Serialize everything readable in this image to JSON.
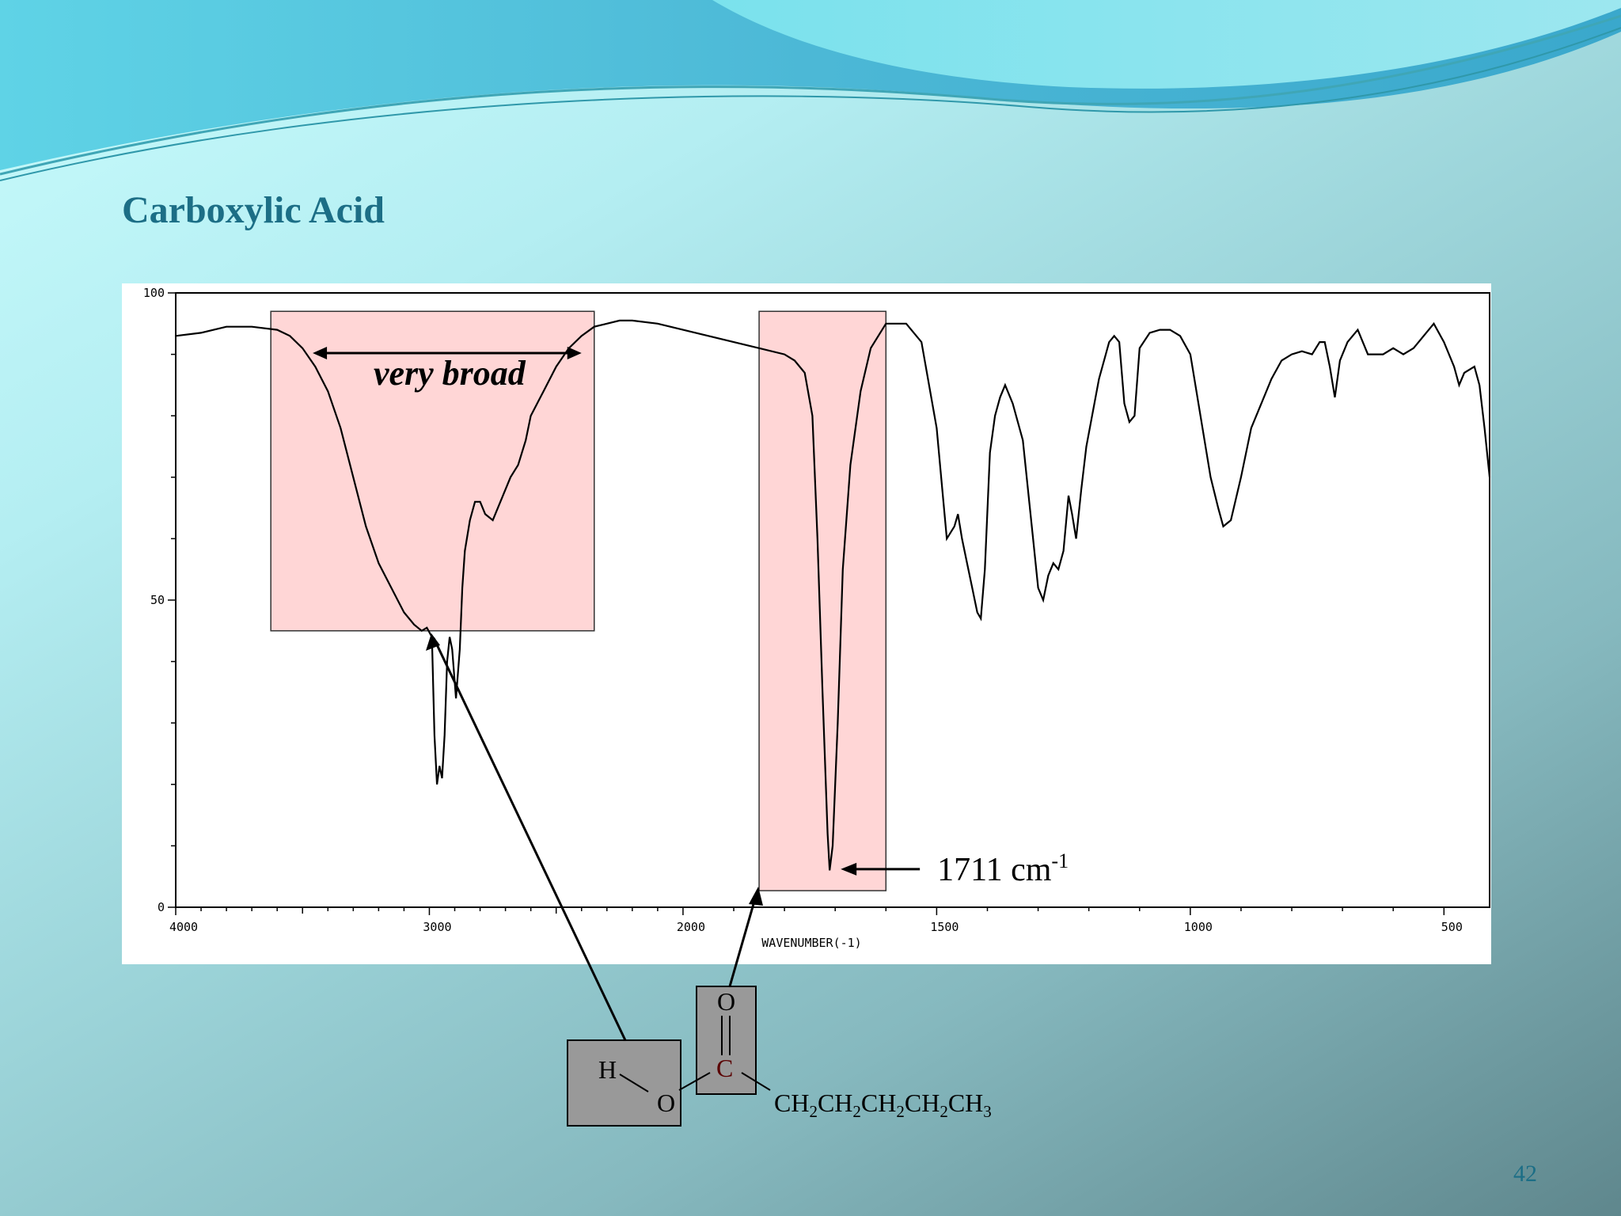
{
  "slide": {
    "title": "Carboxylic Acid",
    "page_number": "42"
  },
  "annotations": {
    "broad_label": "very broad",
    "peak_label": "1711 cm",
    "peak_label_sup": "-1"
  },
  "structure": {
    "h_atom": "H",
    "o_atom": "O",
    "carbonyl_o": "O",
    "carbonyl_c": "C",
    "chain": [
      "CH",
      "2",
      "CH",
      "2",
      "CH",
      "2",
      "CH",
      "2",
      "CH",
      "3"
    ]
  },
  "colors": {
    "title": "#1c6e86",
    "highlight": "#ffd6d6",
    "structure_box": "#999999",
    "wave_top": "#3bb6d0"
  },
  "chart_data": {
    "type": "line",
    "title": "",
    "xlabel": "WAVENUMBER(-1)",
    "ylabel": "",
    "xlim": [
      4000,
      410
    ],
    "ylim": [
      0,
      100
    ],
    "x_ticks": [
      4000,
      3000,
      2000,
      1500,
      1000,
      500
    ],
    "x_tick_labels": [
      "4000",
      "3000",
      "2000",
      "1500",
      "1000",
      "500"
    ],
    "y_ticks": [
      0,
      50,
      100
    ],
    "y_tick_labels": [
      "0",
      "50",
      "100"
    ],
    "grid": false,
    "series": [
      {
        "x": [
          4000,
          3900,
          3800,
          3700,
          3600,
          3550,
          3500,
          3450,
          3400,
          3350,
          3300,
          3250,
          3200,
          3150,
          3100,
          3060,
          3030,
          3010,
          2990,
          2980,
          2970,
          2960,
          2950,
          2940,
          2930,
          2920,
          2910,
          2895,
          2880,
          2870,
          2860,
          2840,
          2820,
          2800,
          2780,
          2750,
          2720,
          2700,
          2680,
          2650,
          2620,
          2600,
          2550,
          2500,
          2450,
          2400,
          2350,
          2300,
          2250,
          2200,
          2100,
          2000,
          1900,
          1850,
          1800,
          1780,
          1760,
          1745,
          1735,
          1725,
          1715,
          1711,
          1705,
          1695,
          1685,
          1670,
          1650,
          1630,
          1600,
          1560,
          1530,
          1500,
          1480,
          1465,
          1458,
          1450,
          1440,
          1430,
          1420,
          1413,
          1405,
          1395,
          1385,
          1375,
          1365,
          1350,
          1330,
          1310,
          1300,
          1290,
          1280,
          1270,
          1260,
          1250,
          1240,
          1233,
          1225,
          1215,
          1205,
          1180,
          1160,
          1150,
          1140,
          1130,
          1120,
          1110,
          1100,
          1080,
          1060,
          1040,
          1020,
          1000,
          980,
          960,
          945,
          935,
          920,
          900,
          880,
          860,
          840,
          820,
          800,
          780,
          760,
          745,
          735,
          725,
          715,
          705,
          690,
          670,
          650,
          620,
          600,
          580,
          560,
          540,
          520,
          500,
          480,
          470,
          460,
          440,
          430,
          420,
          410
        ],
        "y": [
          93,
          93.5,
          94.5,
          94.5,
          94,
          93,
          91,
          88,
          84,
          78,
          70,
          62,
          56,
          52,
          48,
          46,
          45,
          45.5,
          44,
          28,
          20,
          23,
          21,
          28,
          40,
          44,
          42,
          34,
          42,
          52,
          58,
          63,
          66,
          66,
          64,
          63,
          66,
          68,
          70,
          72,
          76,
          80,
          84,
          88,
          91,
          93,
          94.5,
          95,
          95.5,
          95.5,
          95,
          94,
          92,
          91,
          90,
          89,
          87,
          80,
          60,
          35,
          12,
          6,
          10,
          30,
          55,
          72,
          84,
          91,
          95,
          95,
          92,
          78,
          60,
          62,
          64,
          60,
          56,
          52,
          48,
          47,
          55,
          74,
          80,
          83,
          85,
          82,
          76,
          60,
          52,
          50,
          54,
          56,
          55,
          58,
          67,
          64,
          60,
          68,
          75,
          86,
          92,
          93,
          92,
          82,
          79,
          80,
          91,
          93.5,
          94,
          94,
          93,
          90,
          80,
          70,
          65,
          62,
          63,
          70,
          78,
          82,
          86,
          89,
          90,
          90.5,
          90,
          92,
          92,
          88,
          83,
          89,
          92,
          94,
          90,
          90,
          91,
          90,
          91,
          93,
          95,
          92,
          88,
          85,
          87,
          88,
          85,
          78,
          70
        ]
      }
    ],
    "highlights": [
      {
        "x_range": [
          3625,
          2350
        ],
        "y_range": [
          45,
          97
        ]
      },
      {
        "x_range": [
          1850,
          1600
        ],
        "y_range": [
          2.7,
          97
        ]
      }
    ]
  }
}
